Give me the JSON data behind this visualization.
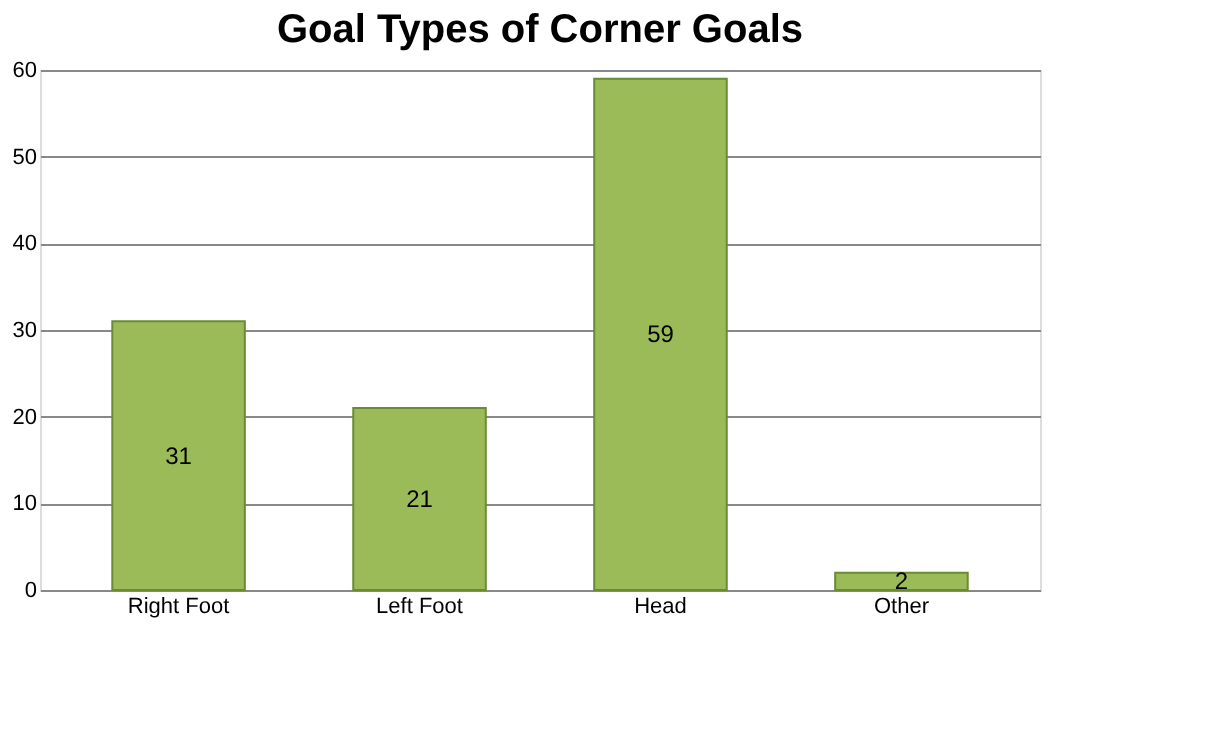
{
  "chart_data": {
    "type": "bar",
    "title": "Goal Types of Corner Goals",
    "categories": [
      "Right Foot",
      "Left Foot",
      "Head",
      "Other"
    ],
    "values": [
      31,
      21,
      59,
      2
    ],
    "color": "#9bbb59",
    "ylim": [
      0,
      60
    ],
    "yticks": [
      0,
      10,
      20,
      30,
      40,
      50,
      60
    ],
    "grid": "y",
    "data_labels": true
  }
}
